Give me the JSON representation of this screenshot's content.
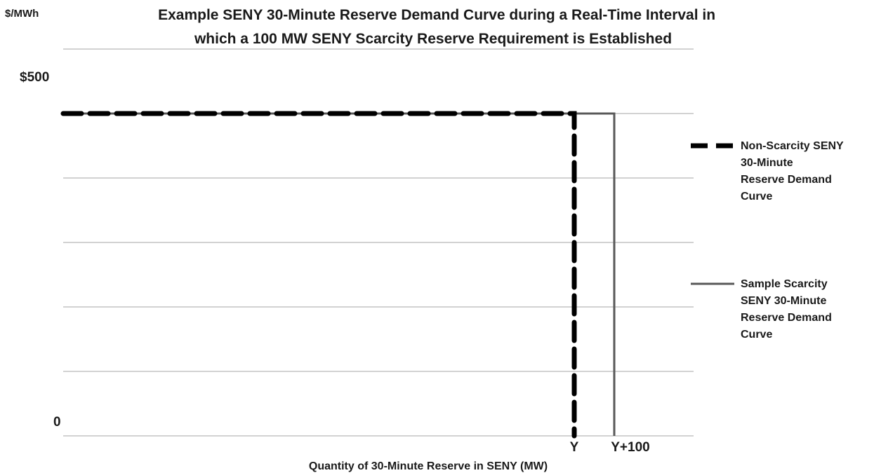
{
  "chart_data": {
    "type": "line",
    "title": "Example SENY 30-Minute Reserve Demand Curve during a Real-Time Interval in which a 100 MW SENY Scarcity Reserve Requirement is Established",
    "title_lines": [
      "Example SENY 30-Minute Reserve Demand Curve during a Real-Time Interval in",
      "which a 100 MW SENY Scarcity Reserve Requirement is Established"
    ],
    "ylabel": "$/MWh",
    "xlabel": "Quantity of 30-Minute Reserve in SENY (MW)",
    "y_tick_labels": [
      {
        "value": 500,
        "label": "$500"
      },
      {
        "value": 0,
        "label": "0"
      }
    ],
    "x_tick_labels": [
      {
        "value": 0,
        "label": "Y"
      },
      {
        "value": 100,
        "label": "Y+100"
      }
    ],
    "ylim": [
      0,
      500
    ],
    "gridlines": 6,
    "grid": true,
    "legend_position": "right",
    "series": [
      {
        "name": "Non-Scarcity SENY 30-Minute Reserve Demand Curve",
        "name_lines": [
          "Non-Scarcity SENY",
          "30-Minute",
          "Reserve Demand",
          "Curve"
        ],
        "style": "dashed",
        "color": "#000000",
        "points": [
          [
            -1400,
            500
          ],
          [
            0,
            500
          ],
          [
            0,
            0
          ]
        ]
      },
      {
        "name": "Sample Scarcity SENY 30-Minute Reserve Demand Curve",
        "name_lines": [
          "Sample Scarcity",
          "SENY 30-Minute",
          "Reserve Demand",
          "Curve"
        ],
        "style": "solid",
        "color": "#595959",
        "points": [
          [
            -1400,
            500
          ],
          [
            100,
            500
          ],
          [
            100,
            0
          ]
        ]
      }
    ]
  }
}
